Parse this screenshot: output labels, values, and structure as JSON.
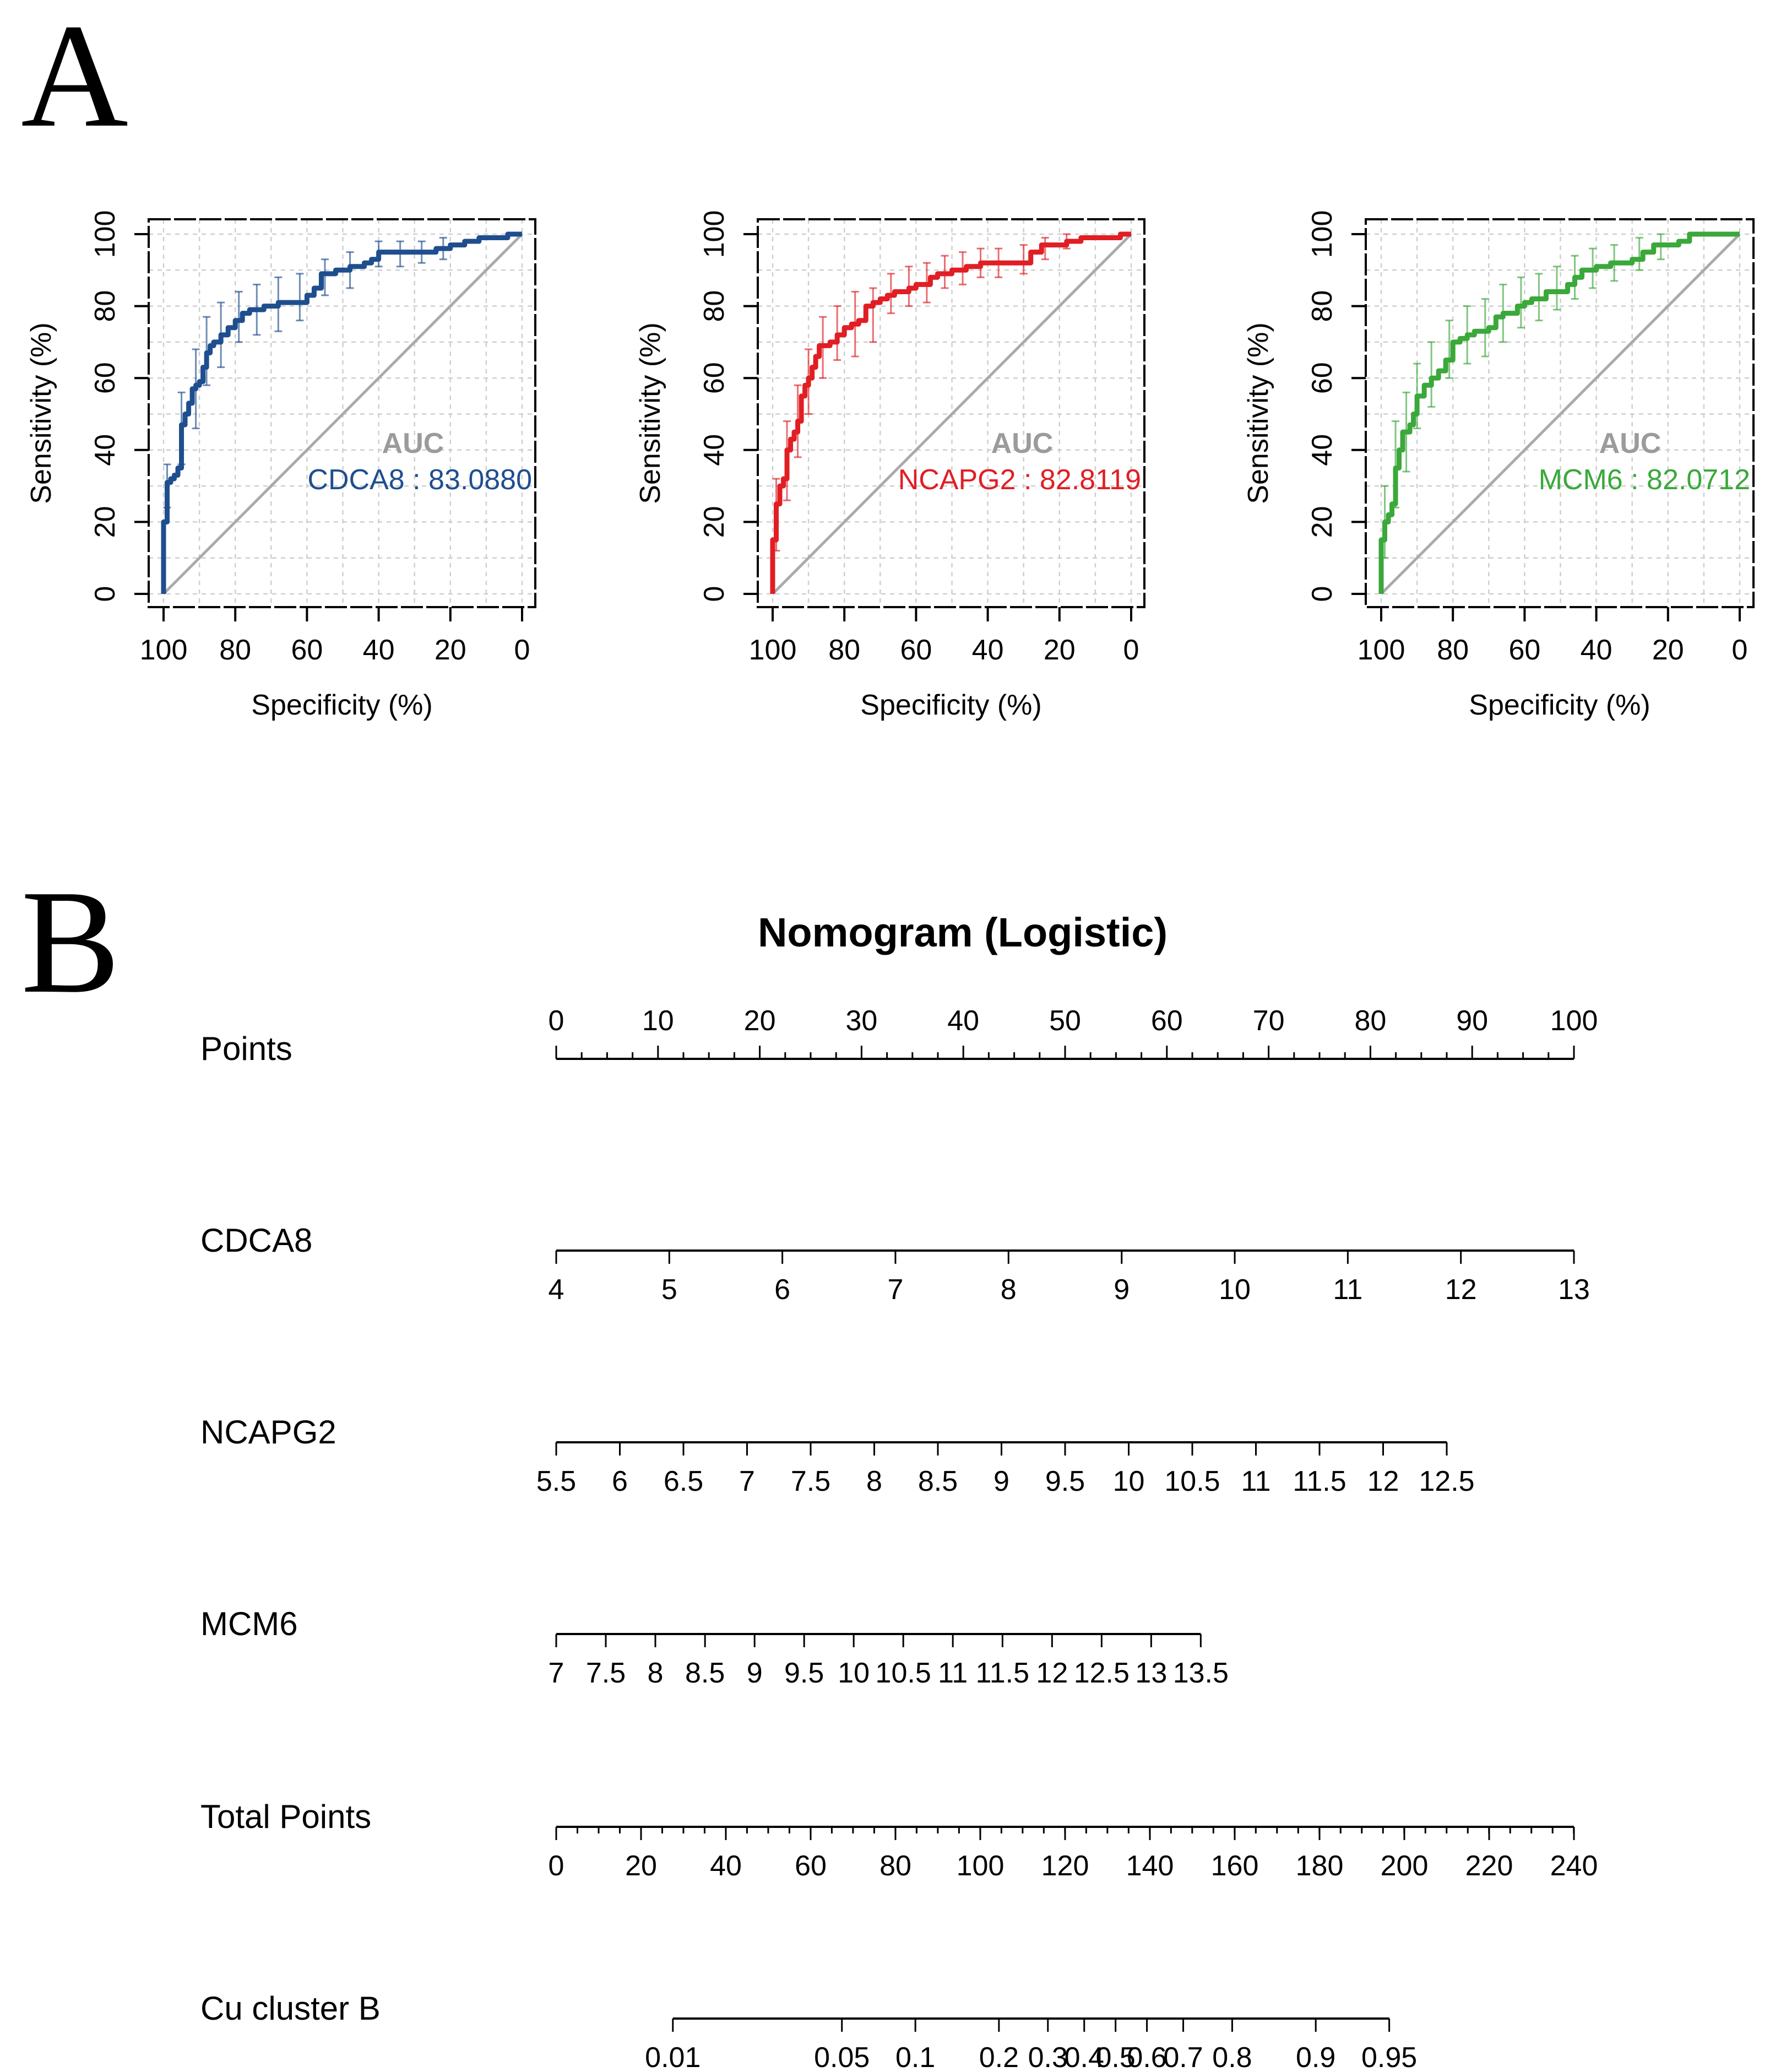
{
  "panel_letters": {
    "a": "A",
    "b": "B"
  },
  "colors": {
    "cdca8": "#1F4E8F",
    "ncapg2": "#E01E24",
    "mcm6": "#3AA83A",
    "auc_label": "#9B9B9B",
    "diagonal": "#AAAAAA",
    "grid": "#CFCFCF",
    "axis": "#000000"
  },
  "chart_data": [
    {
      "type": "line",
      "title": "",
      "name": "CDCA8",
      "xlabel": "Specificity (%)",
      "ylabel": "Sensitivity (%)",
      "xlim": [
        100,
        0
      ],
      "ylim": [
        0,
        100
      ],
      "x_ticks": [
        "100",
        "80",
        "60",
        "40",
        "20",
        "0"
      ],
      "y_ticks": [
        "0",
        "20",
        "40",
        "60",
        "80",
        "100"
      ],
      "grid": true,
      "auc_title": "AUC",
      "auc_text": "CDCA8 : 83.0880",
      "color": "#1F4E8F",
      "x": [
        100,
        100,
        99,
        99,
        98,
        97,
        96,
        95,
        95,
        94,
        93,
        92,
        91,
        90,
        89,
        88,
        87,
        86,
        85,
        84,
        82,
        80,
        78,
        76,
        74,
        72,
        70,
        68,
        66,
        64,
        62,
        60,
        58,
        56,
        54,
        52,
        50,
        48,
        46,
        44,
        42,
        40,
        38,
        35,
        32,
        28,
        24,
        20,
        16,
        12,
        8,
        4,
        0
      ],
      "y": [
        0,
        20,
        28,
        31,
        32,
        33,
        35,
        42,
        47,
        50,
        53,
        57,
        58,
        59,
        63,
        67,
        69,
        70,
        70,
        72,
        74,
        76,
        78,
        79,
        79,
        80,
        80,
        81,
        81,
        81,
        81,
        83,
        85,
        89,
        89,
        90,
        90,
        91,
        91,
        92,
        93,
        95,
        95,
        95,
        95,
        95,
        96,
        97,
        98,
        99,
        99,
        100,
        100
      ],
      "ci": [
        {
          "x": 99,
          "lo": 24,
          "hi": 36
        },
        {
          "x": 95,
          "lo": 36,
          "hi": 56
        },
        {
          "x": 91,
          "lo": 46,
          "hi": 68
        },
        {
          "x": 88,
          "lo": 58,
          "hi": 77
        },
        {
          "x": 84,
          "lo": 63,
          "hi": 81
        },
        {
          "x": 79,
          "lo": 70,
          "hi": 84
        },
        {
          "x": 74,
          "lo": 72,
          "hi": 86
        },
        {
          "x": 68,
          "lo": 73,
          "hi": 88
        },
        {
          "x": 62,
          "lo": 76,
          "hi": 89
        },
        {
          "x": 55,
          "lo": 83,
          "hi": 93
        },
        {
          "x": 48,
          "lo": 85,
          "hi": 95
        },
        {
          "x": 40,
          "lo": 91,
          "hi": 98
        },
        {
          "x": 34,
          "lo": 91,
          "hi": 98
        },
        {
          "x": 28,
          "lo": 92,
          "hi": 98
        },
        {
          "x": 22,
          "lo": 93,
          "hi": 99
        }
      ]
    },
    {
      "type": "line",
      "title": "",
      "name": "NCAPG2",
      "xlabel": "Specificity (%)",
      "ylabel": "Sensitivity (%)",
      "xlim": [
        100,
        0
      ],
      "ylim": [
        0,
        100
      ],
      "x_ticks": [
        "100",
        "80",
        "60",
        "40",
        "20",
        "0"
      ],
      "y_ticks": [
        "0",
        "20",
        "40",
        "60",
        "80",
        "100"
      ],
      "grid": true,
      "auc_title": "AUC",
      "auc_text": "NCAPG2 : 82.8119",
      "color": "#E01E24",
      "x": [
        100,
        100,
        99,
        99,
        98,
        97,
        96,
        95,
        94,
        93,
        92,
        91,
        90,
        89,
        88,
        87,
        86,
        84,
        82,
        80,
        78,
        76,
        74,
        72,
        70,
        68,
        66,
        64,
        62,
        60,
        58,
        56,
        54,
        52,
        50,
        48,
        46,
        44,
        42,
        40,
        36,
        32,
        30,
        28,
        25,
        22,
        18,
        14,
        10,
        6,
        3,
        0
      ],
      "y": [
        0,
        15,
        22,
        25,
        30,
        32,
        40,
        43,
        45,
        48,
        55,
        58,
        60,
        63,
        66,
        69,
        69,
        70,
        72,
        74,
        75,
        76,
        80,
        81,
        82,
        83,
        84,
        84,
        85,
        86,
        86,
        88,
        89,
        89,
        90,
        90,
        91,
        91,
        92,
        92,
        92,
        92,
        92,
        95,
        97,
        97,
        98,
        99,
        99,
        99,
        100,
        100
      ],
      "ci": [
        {
          "x": 99,
          "lo": 12,
          "hi": 32
        },
        {
          "x": 96,
          "lo": 26,
          "hi": 48
        },
        {
          "x": 93,
          "lo": 38,
          "hi": 58
        },
        {
          "x": 90,
          "lo": 50,
          "hi": 68
        },
        {
          "x": 86,
          "lo": 60,
          "hi": 77
        },
        {
          "x": 82,
          "lo": 65,
          "hi": 80
        },
        {
          "x": 77,
          "lo": 66,
          "hi": 84
        },
        {
          "x": 72,
          "lo": 70,
          "hi": 85
        },
        {
          "x": 67,
          "lo": 78,
          "hi": 89
        },
        {
          "x": 62,
          "lo": 80,
          "hi": 91
        },
        {
          "x": 57,
          "lo": 81,
          "hi": 92
        },
        {
          "x": 52,
          "lo": 85,
          "hi": 94
        },
        {
          "x": 47,
          "lo": 86,
          "hi": 95
        },
        {
          "x": 42,
          "lo": 88,
          "hi": 96
        },
        {
          "x": 37,
          "lo": 88,
          "hi": 96
        },
        {
          "x": 30,
          "lo": 89,
          "hi": 97
        },
        {
          "x": 24,
          "lo": 93,
          "hi": 99
        },
        {
          "x": 18,
          "lo": 96,
          "hi": 100
        }
      ]
    },
    {
      "type": "line",
      "title": "",
      "name": "MCM6",
      "xlabel": "Specificity (%)",
      "ylabel": "Sensitivity (%)",
      "xlim": [
        100,
        0
      ],
      "ylim": [
        0,
        100
      ],
      "x_ticks": [
        "100",
        "80",
        "60",
        "40",
        "20",
        "0"
      ],
      "y_ticks": [
        "0",
        "20",
        "40",
        "60",
        "80",
        "100"
      ],
      "grid": true,
      "auc_title": "AUC",
      "auc_text": "MCM6 : 82.0712",
      "color": "#3AA83A",
      "x": [
        100,
        100,
        99,
        98,
        97,
        96,
        95,
        95,
        94,
        93,
        92,
        91,
        90,
        88,
        86,
        84,
        82,
        80,
        78,
        76,
        74,
        72,
        70,
        68,
        66,
        64,
        62,
        60,
        58,
        56,
        54,
        52,
        50,
        48,
        46,
        44,
        42,
        40,
        38,
        36,
        33,
        30,
        27,
        24,
        20,
        17,
        14,
        10,
        6,
        3,
        0
      ],
      "y": [
        0,
        15,
        20,
        22,
        25,
        35,
        37,
        40,
        45,
        45,
        47,
        50,
        55,
        58,
        60,
        62,
        65,
        70,
        71,
        72,
        73,
        73,
        74,
        77,
        78,
        78,
        80,
        81,
        82,
        82,
        84,
        84,
        84,
        86,
        88,
        90,
        90,
        91,
        91,
        92,
        92,
        93,
        95,
        97,
        97,
        98,
        100,
        100,
        100,
        100,
        100
      ],
      "ci": [
        {
          "x": 99,
          "lo": 10,
          "hi": 30
        },
        {
          "x": 96,
          "lo": 24,
          "hi": 48
        },
        {
          "x": 93,
          "lo": 34,
          "hi": 56
        },
        {
          "x": 90,
          "lo": 46,
          "hi": 64
        },
        {
          "x": 86,
          "lo": 52,
          "hi": 70
        },
        {
          "x": 81,
          "lo": 60,
          "hi": 76
        },
        {
          "x": 76,
          "lo": 64,
          "hi": 80
        },
        {
          "x": 71,
          "lo": 66,
          "hi": 82
        },
        {
          "x": 66,
          "lo": 70,
          "hi": 86
        },
        {
          "x": 61,
          "lo": 74,
          "hi": 88
        },
        {
          "x": 56,
          "lo": 76,
          "hi": 89
        },
        {
          "x": 51,
          "lo": 79,
          "hi": 91
        },
        {
          "x": 46,
          "lo": 82,
          "hi": 94
        },
        {
          "x": 41,
          "lo": 85,
          "hi": 96
        },
        {
          "x": 35,
          "lo": 87,
          "hi": 97
        },
        {
          "x": 28,
          "lo": 90,
          "hi": 99
        },
        {
          "x": 22,
          "lo": 93,
          "hi": 100
        }
      ]
    },
    {
      "type": "nomogram",
      "title": "Nomogram (Logistic)",
      "points_range": [
        0,
        100
      ],
      "rows": [
        {
          "name": "Points",
          "label_side": "above",
          "ticks": [
            {
              "v": 0,
              "pts": 0
            },
            {
              "v": 10,
              "pts": 10
            },
            {
              "v": 20,
              "pts": 20
            },
            {
              "v": 30,
              "pts": 30
            },
            {
              "v": 40,
              "pts": 40
            },
            {
              "v": 50,
              "pts": 50
            },
            {
              "v": 60,
              "pts": 60
            },
            {
              "v": 70,
              "pts": 70
            },
            {
              "v": 80,
              "pts": 80
            },
            {
              "v": 90,
              "pts": 90
            },
            {
              "v": 100,
              "pts": 100
            }
          ],
          "labels": [
            "0",
            "10",
            "20",
            "30",
            "40",
            "50",
            "60",
            "70",
            "80",
            "90",
            "100"
          ],
          "minor_step": 2.5
        },
        {
          "name": "CDCA8",
          "label_side": "below",
          "labels": [
            "4",
            "5",
            "6",
            "7",
            "8",
            "9",
            "10",
            "11",
            "12",
            "13"
          ],
          "points": [
            0,
            11.11,
            22.22,
            33.33,
            44.44,
            55.56,
            66.67,
            77.78,
            88.89,
            100
          ]
        },
        {
          "name": "NCAPG2",
          "label_side": "below",
          "labels": [
            "5.5",
            "6",
            "6.5",
            "7",
            "7.5",
            "8",
            "8.5",
            "9",
            "9.5",
            "10",
            "10.5",
            "11",
            "11.5",
            "12",
            "12.5"
          ],
          "points": [
            0,
            6.25,
            12.5,
            18.75,
            25,
            31.25,
            37.5,
            43.75,
            50,
            56.25,
            62.5,
            68.75,
            75,
            81.25,
            87.5
          ]
        },
        {
          "name": "MCM6",
          "label_side": "below",
          "labels": [
            "7",
            "7.5",
            "8",
            "8.5",
            "9",
            "9.5",
            "10",
            "10.5",
            "11",
            "11.5",
            "12",
            "12.5",
            "13",
            "13.5"
          ],
          "points": [
            0,
            4.87,
            9.74,
            14.62,
            19.49,
            24.36,
            29.23,
            34.1,
            38.97,
            43.85,
            48.72,
            53.59,
            58.46,
            63.33
          ]
        },
        {
          "name": "Total Points",
          "label_side": "below",
          "labels": [
            "0",
            "20",
            "40",
            "60",
            "80",
            "100",
            "120",
            "140",
            "160",
            "180",
            "200",
            "220",
            "240"
          ],
          "points": [
            0,
            8.333,
            16.667,
            25,
            33.333,
            41.667,
            50,
            58.333,
            66.667,
            75,
            83.333,
            91.667,
            100
          ],
          "minor_step": 2.083
        },
        {
          "name": "Cu cluster B",
          "label_side": "below",
          "labels": [
            "0.01",
            "0.05",
            "0.1",
            "0.2",
            "0.3",
            "0.4",
            "0.5",
            "0.6",
            "0.7",
            "0.8",
            "0.9",
            "0.95"
          ],
          "points": [
            11.46,
            28.07,
            35.29,
            43.5,
            48.31,
            51.88,
            54.96,
            58.04,
            61.61,
            66.42,
            74.63,
            81.85
          ]
        }
      ]
    }
  ]
}
